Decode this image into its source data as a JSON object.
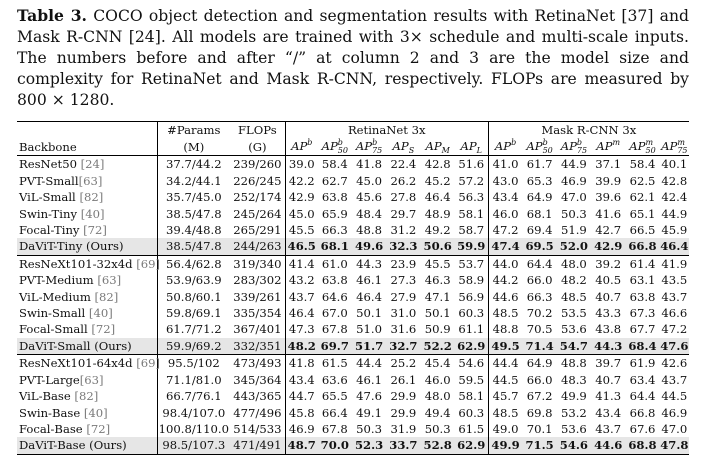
{
  "caption": {
    "label": "Table 3.",
    "text": " COCO object detection and segmentation results with RetinaNet [37] and Mask R-CNN [24]. All models are trained with 3× schedule and multi-scale inputs. The numbers before and after “/” at column 2 and 3 are the model size and complexity for RetinaNet and Mask R-CNN, respectively. FLOPs are measured by 800 × 1280."
  },
  "table": {
    "col_backbone": "Backbone",
    "col_params": "#Params",
    "col_params_unit": "(M)",
    "col_flops": "FLOPs",
    "col_flops_unit": "(G)",
    "group_retina": "RetinaNet 3x",
    "group_mask": "Mask R-CNN 3x",
    "ap_headers": [
      {
        "base": "AP",
        "sup": "b",
        "sub": ""
      },
      {
        "base": "AP",
        "sup": "b",
        "sub": "50"
      },
      {
        "base": "AP",
        "sup": "b",
        "sub": "75"
      },
      {
        "base": "AP",
        "sup": "",
        "sub": "S"
      },
      {
        "base": "AP",
        "sup": "",
        "sub": "M"
      },
      {
        "base": "AP",
        "sup": "",
        "sub": "L"
      },
      {
        "base": "AP",
        "sup": "b",
        "sub": ""
      },
      {
        "base": "AP",
        "sup": "b",
        "sub": "50"
      },
      {
        "base": "AP",
        "sup": "b",
        "sub": "75"
      },
      {
        "base": "AP",
        "sup": "m",
        "sub": ""
      },
      {
        "base": "AP",
        "sup": "m",
        "sub": "50"
      },
      {
        "base": "AP",
        "sup": "m",
        "sub": "75"
      }
    ],
    "groups": [
      [
        {
          "name": "ResNet50",
          "ref": "[24]",
          "space": true,
          "params": "37.7/44.2",
          "flops": "239/260",
          "vals": [
            "39.0",
            "58.4",
            "41.8",
            "22.4",
            "42.8",
            "51.6",
            "41.0",
            "61.7",
            "44.9",
            "37.1",
            "58.4",
            "40.1"
          ],
          "ours": false
        },
        {
          "name": "PVT-Small",
          "ref": "[63]",
          "space": false,
          "params": "34.2/44.1",
          "flops": "226/245",
          "vals": [
            "42.2",
            "62.7",
            "45.0",
            "26.2",
            "45.2",
            "57.2",
            "43.0",
            "65.3",
            "46.9",
            "39.9",
            "62.5",
            "42.8"
          ],
          "ours": false
        },
        {
          "name": "ViL-Small",
          "ref": "[82]",
          "space": true,
          "params": "35.7/45.0",
          "flops": "252/174",
          "vals": [
            "42.9",
            "63.8",
            "45.6",
            "27.8",
            "46.4",
            "56.3",
            "43.4",
            "64.9",
            "47.0",
            "39.6",
            "62.1",
            "42.4"
          ],
          "ours": false
        },
        {
          "name": "Swin-Tiny",
          "ref": "[40]",
          "space": true,
          "params": "38.5/47.8",
          "flops": "245/264",
          "vals": [
            "45.0",
            "65.9",
            "48.4",
            "29.7",
            "48.9",
            "58.1",
            "46.0",
            "68.1",
            "50.3",
            "41.6",
            "65.1",
            "44.9"
          ],
          "ours": false
        },
        {
          "name": "Focal-Tiny",
          "ref": "[72]",
          "space": true,
          "params": "39.4/48.8",
          "flops": "265/291",
          "vals": [
            "45.5",
            "66.3",
            "48.8",
            "31.2",
            "49.2",
            "58.7",
            "47.2",
            "69.4",
            "51.9",
            "42.7",
            "66.5",
            "45.9"
          ],
          "ours": false
        },
        {
          "name": "DaViT-Tiny (Ours)",
          "ref": "",
          "space": false,
          "params": "38.5/47.8",
          "flops": "244/263",
          "vals": [
            "46.5",
            "68.1",
            "49.6",
            "32.3",
            "50.6",
            "59.9",
            "47.4",
            "69.5",
            "52.0",
            "42.9",
            "66.8",
            "46.4"
          ],
          "ours": true
        }
      ],
      [
        {
          "name": "ResNeXt101-32x4d",
          "ref": "[69]",
          "space": true,
          "params": "56.4/62.8",
          "flops": "319/340",
          "vals": [
            "41.4",
            "61.0",
            "44.3",
            "23.9",
            "45.5",
            "53.7",
            "44.0",
            "64.4",
            "48.0",
            "39.2",
            "61.4",
            "41.9"
          ],
          "ours": false
        },
        {
          "name": "PVT-Medium",
          "ref": "[63]",
          "space": true,
          "params": "53.9/63.9",
          "flops": "283/302",
          "vals": [
            "43.2",
            "63.8",
            "46.1",
            "27.3",
            "46.3",
            "58.9",
            "44.2",
            "66.0",
            "48.2",
            "40.5",
            "63.1",
            "43.5"
          ],
          "ours": false
        },
        {
          "name": "ViL-Medium",
          "ref": "[82]",
          "space": true,
          "params": "50.8/60.1",
          "flops": "339/261",
          "vals": [
            "43.7",
            "64.6",
            "46.4",
            "27.9",
            "47.1",
            "56.9",
            "44.6",
            "66.3",
            "48.5",
            "40.7",
            "63.8",
            "43.7"
          ],
          "ours": false
        },
        {
          "name": "Swin-Small",
          "ref": "[40]",
          "space": true,
          "params": "59.8/69.1",
          "flops": "335/354",
          "vals": [
            "46.4",
            "67.0",
            "50.1",
            "31.0",
            "50.1",
            "60.3",
            "48.5",
            "70.2",
            "53.5",
            "43.3",
            "67.3",
            "46.6"
          ],
          "ours": false
        },
        {
          "name": "Focal-Small",
          "ref": "[72]",
          "space": true,
          "params": "61.7/71.2",
          "flops": "367/401",
          "vals": [
            "47.3",
            "67.8",
            "51.0",
            "31.6",
            "50.9",
            "61.1",
            "48.8",
            "70.5",
            "53.6",
            "43.8",
            "67.7",
            "47.2"
          ],
          "ours": false
        },
        {
          "name": "DaViT-Small (Ours)",
          "ref": "",
          "space": false,
          "params": "59.9/69.2",
          "flops": "332/351",
          "vals": [
            "48.2",
            "69.7",
            "51.7",
            "32.7",
            "52.2",
            "62.9",
            "49.5",
            "71.4",
            "54.7",
            "44.3",
            "68.4",
            "47.6"
          ],
          "ours": true
        }
      ],
      [
        {
          "name": "ResNeXt101-64x4d",
          "ref": "[69]",
          "space": true,
          "params": "95.5/102",
          "flops": "473/493",
          "vals": [
            "41.8",
            "61.5",
            "44.4",
            "25.2",
            "45.4",
            "54.6",
            "44.4",
            "64.9",
            "48.8",
            "39.7",
            "61.9",
            "42.6"
          ],
          "ours": false
        },
        {
          "name": "PVT-Large",
          "ref": "[63]",
          "space": false,
          "params": "71.1/81.0",
          "flops": "345/364",
          "vals": [
            "43.4",
            "63.6",
            "46.1",
            "26.1",
            "46.0",
            "59.5",
            "44.5",
            "66.0",
            "48.3",
            "40.7",
            "63.4",
            "43.7"
          ],
          "ours": false
        },
        {
          "name": "ViL-Base",
          "ref": "[82]",
          "space": true,
          "params": "66.7/76.1",
          "flops": "443/365",
          "vals": [
            "44.7",
            "65.5",
            "47.6",
            "29.9",
            "48.0",
            "58.1",
            "45.7",
            "67.2",
            "49.9",
            "41.3",
            "64.4",
            "44.5"
          ],
          "ours": false
        },
        {
          "name": "Swin-Base",
          "ref": "[40]",
          "space": true,
          "params": "98.4/107.0",
          "flops": "477/496",
          "vals": [
            "45.8",
            "66.4",
            "49.1",
            "29.9",
            "49.4",
            "60.3",
            "48.5",
            "69.8",
            "53.2",
            "43.4",
            "66.8",
            "46.9"
          ],
          "ours": false
        },
        {
          "name": "Focal-Base",
          "ref": "[72]",
          "space": true,
          "params": "100.8/110.0",
          "flops": "514/533",
          "vals": [
            "46.9",
            "67.8",
            "50.3",
            "31.9",
            "50.3",
            "61.5",
            "49.0",
            "70.1",
            "53.6",
            "43.7",
            "67.6",
            "47.0"
          ],
          "ours": false
        },
        {
          "name": "DaViT-Base (Ours)",
          "ref": "",
          "space": false,
          "params": "98.5/107.3",
          "flops": "471/491",
          "vals": [
            "48.7",
            "70.0",
            "52.3",
            "33.7",
            "52.8",
            "62.9",
            "49.9",
            "71.5",
            "54.6",
            "44.6",
            "68.8",
            "47.8"
          ],
          "ours": true
        }
      ]
    ]
  }
}
